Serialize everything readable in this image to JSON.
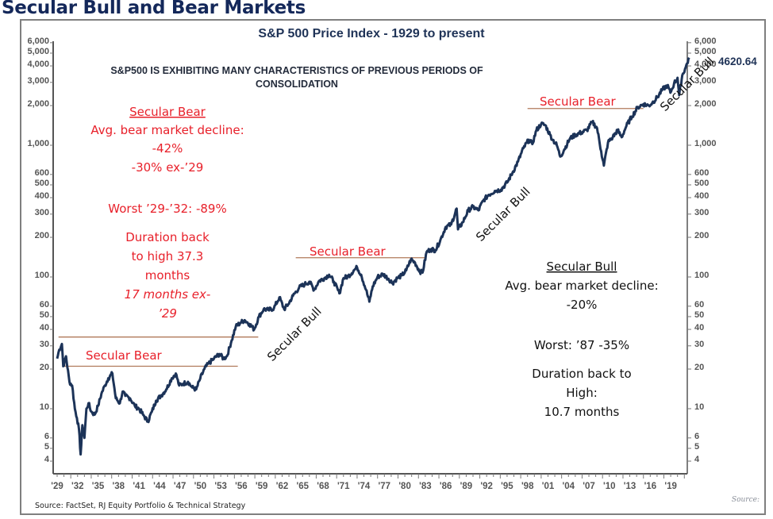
{
  "page_title": "Secular Bull and Bear Markets",
  "chart_data": {
    "type": "line",
    "title": "S&P 500 Price Index - 1929 to present",
    "subtitle_lines": [
      "S&P500 IS EXHIBITING MANY CHARACTERISTICS OF PREVIOUS PERIODS OF",
      "CONSOLIDATION"
    ],
    "xlabel": "",
    "ylabel": "",
    "y_scale": "log",
    "ylim": [
      3,
      6500
    ],
    "xlim": [
      1929,
      2022
    ],
    "grid": false,
    "y_ticks": [
      6000,
      5000,
      4000,
      3000,
      2000,
      1000,
      600,
      500,
      400,
      300,
      200,
      100,
      60,
      50,
      40,
      30,
      20,
      10,
      6,
      5,
      4
    ],
    "y_tick_labels": [
      "6,000",
      "5,000",
      "4,000",
      "3,000",
      "2,000",
      "1,000",
      "600",
      "500",
      "400",
      "300",
      "200",
      "100",
      "60",
      "50",
      "40",
      "30",
      "20",
      "10",
      "6",
      "5",
      "4"
    ],
    "x_ticks": [
      1929,
      1932,
      1935,
      1938,
      1941,
      1944,
      1947,
      1950,
      1953,
      1956,
      1959,
      1962,
      1965,
      1968,
      1971,
      1974,
      1977,
      1980,
      1983,
      1986,
      1989,
      1992,
      1995,
      1998,
      2001,
      2004,
      2007,
      2010,
      2013,
      2016,
      2019
    ],
    "x_tick_labels": [
      "'29",
      "'32",
      "'35",
      "'38",
      "'41",
      "'44",
      "'47",
      "'50",
      "'53",
      "'56",
      "'59",
      "'62",
      "'65",
      "'68",
      "'71",
      "'74",
      "'77",
      "'80",
      "'83",
      "'86",
      "'89",
      "'92",
      "'95",
      "'98",
      "'01",
      "'04",
      "'07",
      "'10",
      "'13",
      "'16",
      "'19"
    ],
    "series": [
      {
        "name": "S&P 500",
        "color": "#1c3358",
        "x": [
          1929.0,
          1929.3,
          1929.7,
          1929.9,
          1930.3,
          1930.8,
          1931.2,
          1931.6,
          1931.9,
          1932.2,
          1932.45,
          1932.7,
          1933.0,
          1933.3,
          1933.6,
          1934.0,
          1934.5,
          1935.0,
          1935.5,
          1936.0,
          1936.5,
          1937.1,
          1937.6,
          1938.2,
          1938.6,
          1939.0,
          1939.7,
          1940.4,
          1941.0,
          1941.6,
          1942.3,
          1942.9,
          1943.5,
          1944.2,
          1945.0,
          1945.8,
          1946.4,
          1946.9,
          1947.5,
          1948.2,
          1948.8,
          1949.4,
          1950.0,
          1950.6,
          1951.2,
          1952.0,
          1952.8,
          1953.4,
          1953.9,
          1954.6,
          1955.2,
          1955.9,
          1956.5,
          1957.2,
          1957.9,
          1958.6,
          1959.3,
          1960.0,
          1960.8,
          1961.6,
          1962.3,
          1962.9,
          1963.6,
          1964.5,
          1965.3,
          1966.0,
          1966.7,
          1967.4,
          1968.2,
          1968.9,
          1969.6,
          1970.4,
          1971.0,
          1971.7,
          1972.5,
          1973.0,
          1973.6,
          1974.3,
          1974.8,
          1975.3,
          1976.0,
          1976.8,
          1977.6,
          1978.2,
          1978.9,
          1979.6,
          1980.2,
          1980.9,
          1981.5,
          1982.2,
          1982.6,
          1983.2,
          1983.8,
          1984.5,
          1985.2,
          1986.0,
          1986.8,
          1987.6,
          1987.8,
          1988.5,
          1989.3,
          1990.0,
          1990.8,
          1991.5,
          1992.3,
          1993.2,
          1994.1,
          1995.0,
          1995.8,
          1996.6,
          1997.4,
          1998.2,
          1998.7,
          1999.3,
          2000.0,
          2000.6,
          2001.3,
          2001.7,
          2002.3,
          2002.8,
          2003.4,
          2004.2,
          2005.0,
          2005.9,
          2006.7,
          2007.5,
          2008.2,
          2008.8,
          2009.2,
          2009.8,
          2010.5,
          2011.2,
          2011.8,
          2012.5,
          2013.3,
          2014.2,
          2015.0,
          2015.8,
          2016.3,
          2017.0,
          2017.8,
          2018.5,
          2018.95,
          2019.5,
          2020.0,
          2020.25,
          2020.7,
          2021.2,
          2021.7
        ],
        "values": [
          24,
          28,
          31,
          21,
          25,
          16,
          15,
          10,
          8.5,
          7.0,
          4.5,
          7.5,
          6.0,
          10.0,
          11.0,
          9.5,
          9.0,
          10.5,
          13.0,
          15.0,
          17.0,
          18.5,
          12.0,
          11.0,
          13.5,
          12.5,
          12.0,
          10.5,
          10.0,
          9.0,
          8.0,
          9.5,
          11.5,
          12.5,
          14.0,
          17.0,
          18.5,
          15.0,
          15.5,
          16.0,
          14.5,
          14.0,
          17.0,
          20.0,
          22.0,
          24.0,
          26.0,
          24.0,
          25.0,
          33.0,
          42.0,
          45.0,
          47.0,
          44.0,
          40.0,
          50.0,
          57.0,
          56.0,
          58.0,
          70.0,
          57.0,
          62.0,
          72.0,
          83.0,
          88.0,
          92.0,
          80.0,
          93.0,
          98.0,
          104.0,
          92.0,
          75.0,
          98.0,
          101.0,
          112.0,
          118.0,
          104.0,
          80.0,
          65.0,
          85.0,
          100.0,
          105.0,
          97.0,
          90.0,
          98.0,
          103.0,
          112.0,
          136.0,
          128.0,
          110.0,
          108.0,
          155.0,
          162.0,
          160.0,
          190.0,
          240.0,
          250.0,
          330.0,
          230.0,
          260.0,
          320.0,
          340.0,
          320.0,
          380.0,
          420.0,
          450.0,
          460.0,
          520.0,
          620.0,
          750.0,
          950.0,
          1100.0,
          1020.0,
          1300.0,
          1450.0,
          1420.0,
          1200.0,
          1100.0,
          1000.0,
          820.0,
          930.0,
          1120.0,
          1200.0,
          1250.0,
          1300.0,
          1500.0,
          1350.0,
          900.0,
          700.0,
          1050.0,
          1150.0,
          1300.0,
          1150.0,
          1400.0,
          1650.0,
          1950.0,
          2050.0,
          2000.0,
          2100.0,
          2300.0,
          2650.0,
          2850.0,
          2500.0,
          2950.0,
          3250.0,
          2400.0,
          3400.0,
          3900.0,
          4620.64
        ]
      }
    ],
    "last_value_label": "4620.64",
    "regime_bands": [
      {
        "label": "Secular Bear",
        "start": 1929,
        "end": 1954,
        "level_top": 35,
        "level_bottom": 21
      },
      {
        "label": "Secular Bear",
        "start": 1964,
        "end": 1983,
        "level_top": 140,
        "level_bottom": null
      },
      {
        "label": "Secular Bear",
        "start": 1998,
        "end": 2015,
        "level_top": 1900,
        "level_bottom": null
      }
    ],
    "annotations": {
      "secular_bull_labels": [
        "Secular Bull",
        "Secular Bull",
        "Secular Bull"
      ],
      "bear_stats": {
        "heading": "Secular Bear",
        "lines": [
          "Avg. bear market decline:",
          "-42%",
          "-30% ex-’29",
          "",
          "Worst ’29-’32: -89%",
          "",
          "Duration back",
          "to high 37.3",
          "months"
        ],
        "italic_lines": [
          "17 months ex-",
          "’29"
        ]
      },
      "bull_stats": {
        "heading": "Secular Bull",
        "lines": [
          "Avg. bear market decline:",
          "-20%",
          "",
          "Worst: ’87 -35%",
          "",
          "Duration back to",
          "High:",
          "10.7 months"
        ]
      }
    },
    "colors": {
      "line": "#1c3358",
      "bear_text": "#e8202a",
      "bull_text": "#111111",
      "band_line": "#b07a5a",
      "title": "#1f3357"
    }
  },
  "footer": {
    "source": "Source: FactSet, RJ Equity Portfolio & Technical Strategy",
    "source_right": "Source:"
  }
}
